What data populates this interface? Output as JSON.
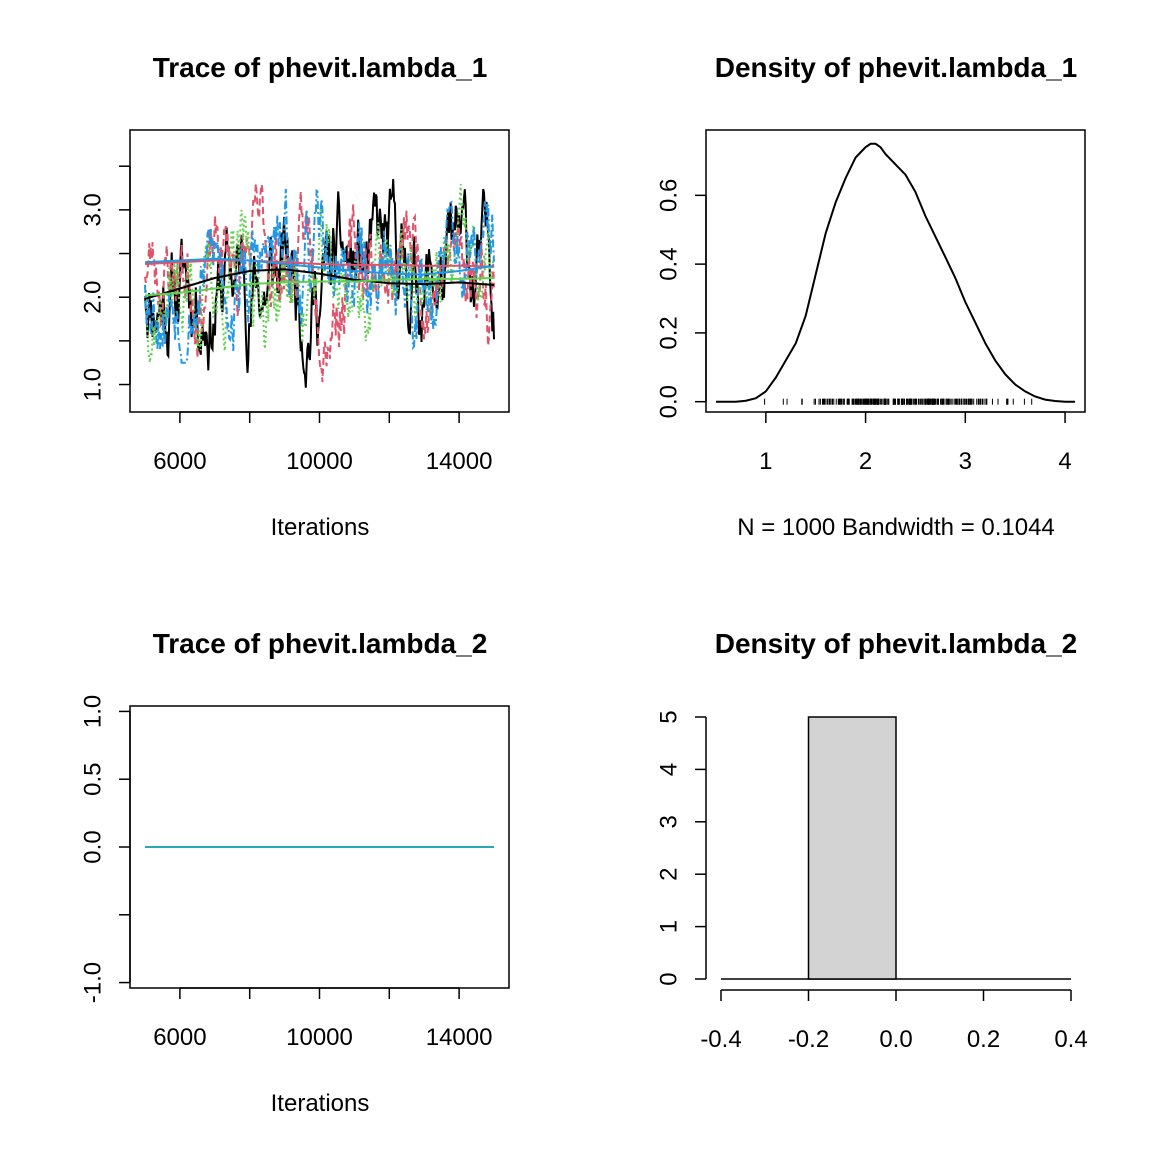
{
  "colors": {
    "black": "#000000",
    "red": "#DF536B",
    "green": "#61D04F",
    "blue": "#2297E6",
    "teal": "#28A9B8",
    "bar_fill": "#D3D3D3"
  },
  "chart_data": [
    {
      "type": "line",
      "title": "Trace of phevit.lambda_1",
      "xlabel": "Iterations",
      "ylabel": "",
      "xlim": [
        5000,
        15000
      ],
      "ylim": [
        0.8,
        3.8
      ],
      "xticks": [
        6000,
        10000,
        14000
      ],
      "xticks_minor": [
        8000,
        12000
      ],
      "yticks": [
        1.0,
        2.0,
        3.0
      ],
      "yticks_minor": [
        1.5,
        2.5,
        3.5
      ],
      "series": [
        {
          "color": "#000000",
          "dash": "solid",
          "mean": 2.2,
          "sd": 0.5,
          "min": 0.8,
          "max": 3.75,
          "seed": 11
        },
        {
          "color": "#DF536B",
          "dash": "dashed",
          "mean": 2.4,
          "sd": 0.45,
          "min": 0.95,
          "max": 3.65,
          "seed": 23
        },
        {
          "color": "#61D04F",
          "dash": "dotted",
          "mean": 2.15,
          "sd": 0.45,
          "min": 0.95,
          "max": 3.7,
          "seed": 37
        },
        {
          "color": "#2297E6",
          "dash": "dashdot",
          "mean": 2.3,
          "sd": 0.45,
          "min": 1.25,
          "max": 3.7,
          "seed": 53
        }
      ],
      "smooth": [
        {
          "color": "#000000",
          "x": [
            5000,
            6000,
            7000,
            8000,
            9000,
            10000,
            11000,
            12000,
            13000,
            14000,
            15000
          ],
          "y": [
            1.98,
            2.1,
            2.22,
            2.3,
            2.32,
            2.27,
            2.2,
            2.16,
            2.15,
            2.17,
            2.14
          ]
        },
        {
          "color": "#DF536B",
          "x": [
            5000,
            6000,
            7000,
            8000,
            9000,
            10000,
            11000,
            12000,
            13000,
            14000,
            15000
          ],
          "y": [
            2.38,
            2.4,
            2.42,
            2.42,
            2.4,
            2.38,
            2.37,
            2.37,
            2.36,
            2.36,
            2.35
          ]
        },
        {
          "color": "#61D04F",
          "x": [
            5000,
            6000,
            7000,
            8000,
            9000,
            10000,
            11000,
            12000,
            13000,
            14000,
            15000
          ],
          "y": [
            2.02,
            2.05,
            2.1,
            2.15,
            2.17,
            2.18,
            2.18,
            2.2,
            2.21,
            2.21,
            2.22
          ]
        },
        {
          "color": "#2297E6",
          "x": [
            5000,
            6000,
            7000,
            8000,
            9000,
            10000,
            11000,
            12000,
            13000,
            14000,
            15000
          ],
          "y": [
            2.4,
            2.42,
            2.44,
            2.42,
            2.38,
            2.34,
            2.3,
            2.27,
            2.26,
            2.3,
            2.36
          ]
        }
      ]
    },
    {
      "type": "line",
      "title": "Density of phevit.lambda_1",
      "xlabel": "N = 1000   Bandwidth = 0.1044",
      "ylabel": "",
      "xlim": [
        0.4,
        4.2
      ],
      "ylim": [
        -0.03,
        0.79
      ],
      "xticks": [
        1,
        2,
        3,
        4
      ],
      "yticks": [
        0.0,
        0.2,
        0.4,
        0.6
      ],
      "curve": {
        "x": [
          0.5,
          0.7,
          0.8,
          0.9,
          1.0,
          1.1,
          1.2,
          1.3,
          1.4,
          1.5,
          1.6,
          1.7,
          1.8,
          1.9,
          2.0,
          2.05,
          2.1,
          2.15,
          2.2,
          2.3,
          2.4,
          2.5,
          2.6,
          2.7,
          2.8,
          2.9,
          3.0,
          3.1,
          3.2,
          3.3,
          3.4,
          3.5,
          3.6,
          3.7,
          3.8,
          3.9,
          4.0,
          4.1
        ],
        "y": [
          0.0,
          0.0,
          0.003,
          0.01,
          0.03,
          0.07,
          0.12,
          0.17,
          0.25,
          0.37,
          0.49,
          0.58,
          0.65,
          0.71,
          0.74,
          0.75,
          0.75,
          0.74,
          0.72,
          0.69,
          0.66,
          0.61,
          0.54,
          0.48,
          0.42,
          0.36,
          0.29,
          0.23,
          0.17,
          0.12,
          0.08,
          0.05,
          0.03,
          0.015,
          0.006,
          0.002,
          0.0,
          0.0
        ]
      },
      "rug": {
        "min": 0.95,
        "max": 3.75,
        "count": 260
      }
    },
    {
      "type": "line",
      "title": "Trace of phevit.lambda_2",
      "xlabel": "Iterations",
      "ylabel": "",
      "xlim": [
        5000,
        15000
      ],
      "ylim": [
        -1.04,
        1.04
      ],
      "xticks": [
        6000,
        10000,
        14000
      ],
      "xticks_minor": [
        8000,
        12000
      ],
      "yticks": [
        -1.0,
        0.0,
        0.5,
        1.0
      ],
      "ytick_labels": [
        "-1.0",
        "0.0",
        "0.5",
        "1.0"
      ],
      "yticks_minor": [
        -0.5
      ],
      "series": [
        {
          "color": "#28A9B8",
          "x": [
            5000,
            15000
          ],
          "y": [
            0.0,
            0.0
          ]
        }
      ]
    },
    {
      "type": "bar",
      "title": "Density of phevit.lambda_2",
      "xlabel": "",
      "ylabel": "",
      "xlim": [
        -0.4,
        0.4
      ],
      "ylim": [
        0,
        5
      ],
      "xticks": [
        -0.4,
        -0.2,
        0.0,
        0.2,
        0.4
      ],
      "xtick_labels": [
        "-0.4",
        "-0.2",
        "0.0",
        "0.2",
        "0.4"
      ],
      "yticks": [
        0,
        1,
        2,
        3,
        4,
        5
      ],
      "bins": [
        {
          "from": -0.2,
          "to": 0.0,
          "value": 5
        }
      ]
    }
  ]
}
